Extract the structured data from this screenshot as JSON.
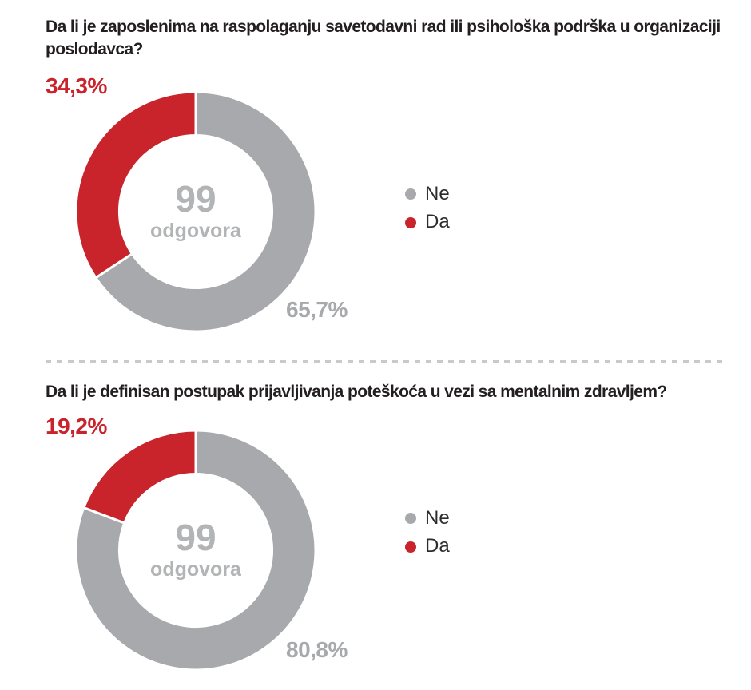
{
  "colors": {
    "red": "#c9232b",
    "gray": "#a7a9ac",
    "center_text": "#b2b4b6",
    "title": "#231f20",
    "legend_text": "#2d2c2b",
    "divider": "#c9cacc"
  },
  "sections": [
    {
      "title": "Da li je zaposlenima na raspolaganju savetodavni rad ili psihološka podrška u organizaciji poslodavca?",
      "highlight_label": "34,3%",
      "majority_label": "65,7%",
      "center_value": "99",
      "center_caption": "odgovora",
      "legend": [
        {
          "label": "Ne"
        },
        {
          "label": "Da"
        }
      ]
    },
    {
      "title": "Da li je definisan postupak prijavljivanja poteškoća u vezi sa mentalnim zdravljem?",
      "highlight_label": "19,2%",
      "majority_label": "80,8%",
      "center_value": "99",
      "center_caption": "odgovora",
      "legend": [
        {
          "label": "Ne"
        },
        {
          "label": "Da"
        }
      ]
    }
  ],
  "chart_data": [
    {
      "type": "pie",
      "subtype": "donut",
      "title": "Da li je zaposlenima na raspolaganju savetodavni rad ili psihološka podrška u organizaciji poslodavca?",
      "categories": [
        "Ne",
        "Da"
      ],
      "values": [
        65.7,
        34.3
      ],
      "unit": "%",
      "colors": [
        "#a7a9ac",
        "#c9232b"
      ],
      "data_labels": [
        "65,7%",
        "34,3%"
      ],
      "center_text": "99 odgovora",
      "total_responses": 99,
      "start_angle_deg": 0,
      "direction": "clockwise",
      "legend_position": "right"
    },
    {
      "type": "pie",
      "subtype": "donut",
      "title": "Da li je definisan postupak prijavljivanja poteškoća u vezi sa mentalnim zdravljem?",
      "categories": [
        "Ne",
        "Da"
      ],
      "values": [
        80.8,
        19.2
      ],
      "unit": "%",
      "colors": [
        "#a7a9ac",
        "#c9232b"
      ],
      "data_labels": [
        "80,8%",
        "19,2%"
      ],
      "center_text": "99 odgovora",
      "total_responses": 99,
      "start_angle_deg": 0,
      "direction": "clockwise",
      "legend_position": "right"
    }
  ]
}
